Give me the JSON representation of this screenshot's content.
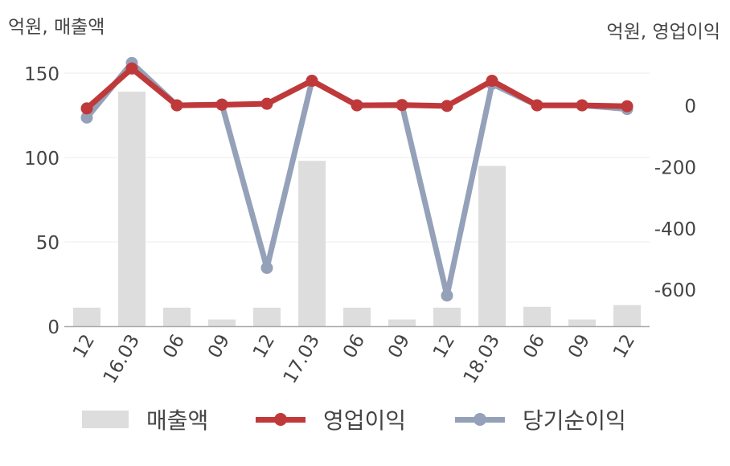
{
  "chart_data": {
    "type": "bar+line",
    "left_unit_label": "억원, 매출액",
    "right_unit_label": "억원, 영업이익",
    "categories": [
      "12",
      "16.03",
      "06",
      "09",
      "12",
      "17.03",
      "06",
      "09",
      "12",
      "18.03",
      "06",
      "09",
      "12"
    ],
    "left_axis": {
      "ylim": [
        0,
        160
      ],
      "ticks": [
        0,
        50,
        100,
        150
      ]
    },
    "right_axis": {
      "ylim": [
        -720,
        160
      ],
      "ticks": [
        0,
        -200,
        -400,
        -600
      ]
    },
    "series": [
      {
        "name": "매출액",
        "type": "bar",
        "axis": "left",
        "color": "#dddddd",
        "values": [
          11,
          139,
          11,
          4,
          11,
          98,
          11,
          4,
          11,
          95,
          11.5,
          4,
          12.5
        ]
      },
      {
        "name": "당기순이익",
        "type": "line",
        "axis": "right",
        "color": "#95a1b9",
        "values": [
          -40,
          138,
          0,
          3,
          -530,
          80,
          0,
          1,
          -620,
          70,
          0,
          0,
          -12
        ]
      },
      {
        "name": "영업이익",
        "type": "line",
        "axis": "right",
        "color": "#c0393a",
        "values": [
          -10,
          120,
          0,
          2,
          5,
          80,
          0,
          1,
          -2,
          80,
          0,
          0,
          -3
        ]
      }
    ],
    "legend_position": "bottom",
    "grid": true
  },
  "legend": {
    "sales_label": "매출액",
    "op_label": "영업이익",
    "net_label": "당기순이익"
  }
}
